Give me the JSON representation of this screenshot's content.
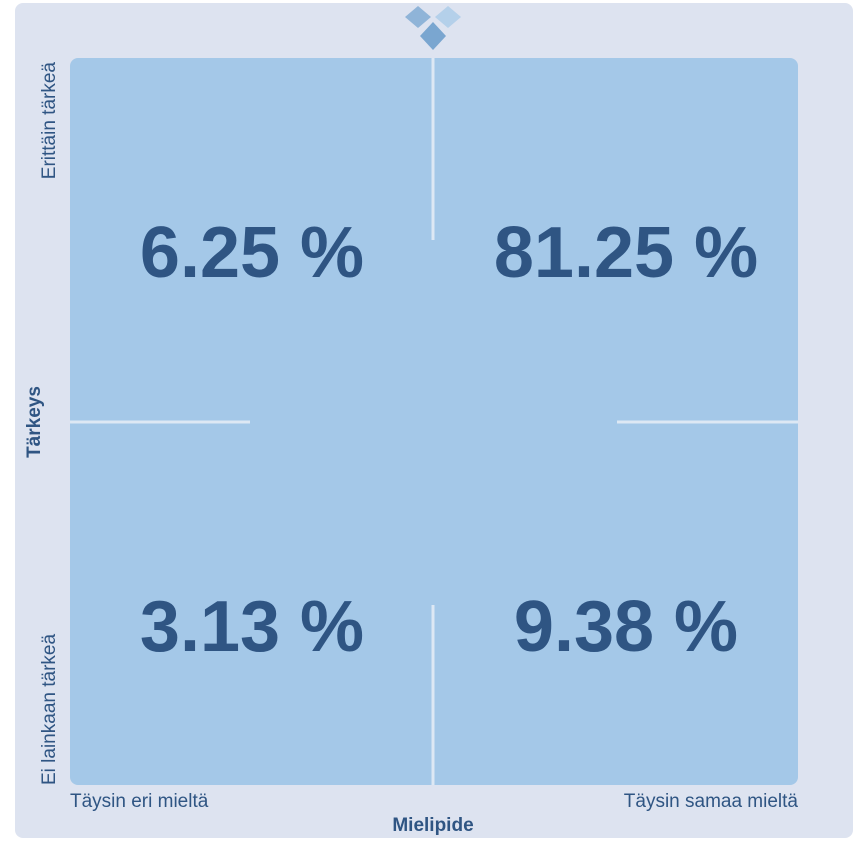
{
  "chart_data": {
    "type": "quadrant",
    "x_label": "Mielipide",
    "y_label": "Tärkeys",
    "x_low": "Täysin eri mieltä",
    "x_high": "Täysin samaa mieltä",
    "y_low": "Ei lainkaan tärkeä",
    "y_high": "Erittäin tärkeä",
    "values": [
      6.25,
      81.25,
      3.13,
      9.38
    ],
    "value_labels": [
      "6.25 %",
      "81.25 %",
      "3.13 %",
      "9.38 %"
    ],
    "color": "#a4c8e8"
  }
}
